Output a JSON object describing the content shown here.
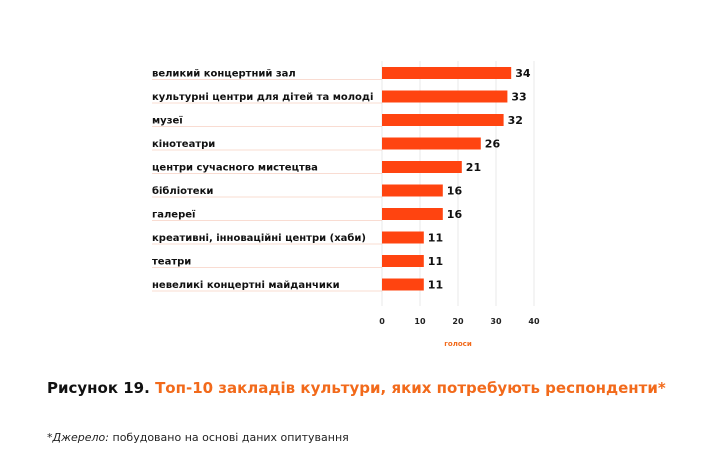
{
  "chart_data": {
    "type": "bar",
    "orientation": "horizontal",
    "categories": [
      "великий концертний зал",
      "культурні центри для дітей та молоді",
      "музеї",
      "кінотеатри",
      "центри сучасного мистецтва",
      "бібліотеки",
      "галереї",
      "креативні, інноваційні центри (хаби)",
      "театри",
      "невеликі концертні майданчики"
    ],
    "values": [
      34,
      33,
      32,
      26,
      21,
      16,
      16,
      11,
      11,
      11
    ],
    "xlabel": "голоси",
    "ticks": [
      "0",
      "10",
      "20",
      "30",
      "40"
    ],
    "xlim": [
      0,
      40
    ],
    "grid": true,
    "bar_color": "#ff4410",
    "axis_title_color": "#f26a1b"
  },
  "caption": {
    "prefix": "Рисунок 19.",
    "title": "Топ-10 закладів культури, яких потребують респонденти*"
  },
  "source": {
    "label": "*Джерело:",
    "text": "побудовано на основі даних опитування"
  }
}
